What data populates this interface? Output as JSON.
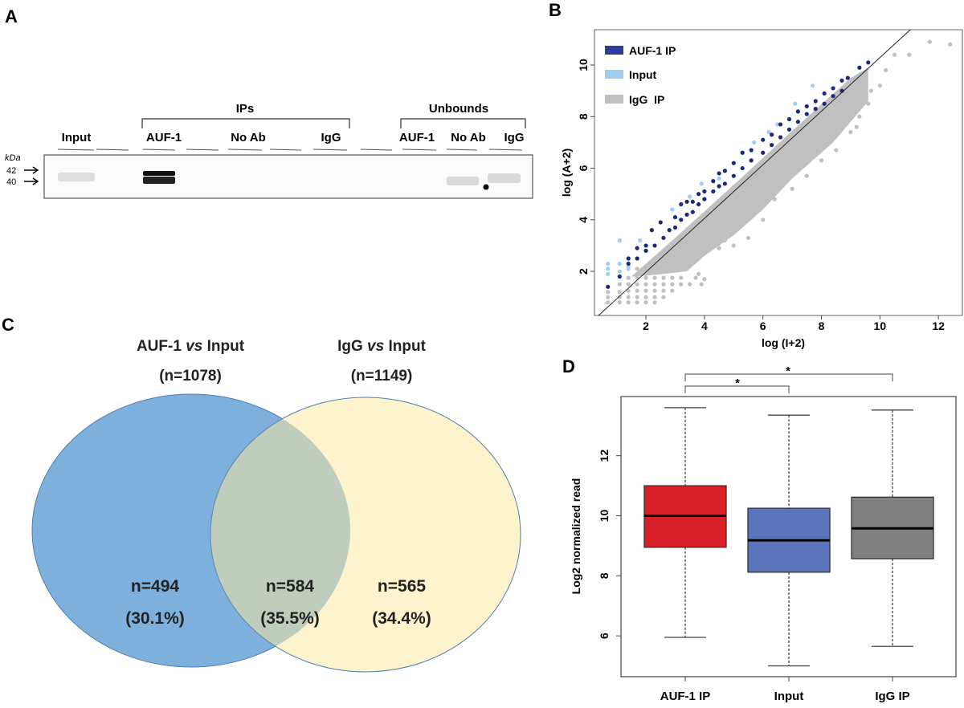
{
  "panel_labels": {
    "a": "A",
    "b": "B",
    "c": "C",
    "d": "D"
  },
  "panel_a": {
    "group_ips": "IPs",
    "group_unbounds": "Unbounds",
    "lanes": [
      "Input",
      "AUF-1",
      "No Ab",
      "IgG",
      "AUF-1",
      "No Ab",
      "IgG"
    ],
    "unit": "kDa",
    "markers": [
      "42",
      "40"
    ]
  },
  "chart_data": [
    {
      "type": "scatter",
      "xlabel": "log (I+2)",
      "ylabel": "log (A+2)",
      "xlim": [
        0.24,
        12.82
      ],
      "ylim": [
        0.29,
        11.37
      ],
      "xticks": [
        2,
        4,
        6,
        8,
        10,
        12
      ],
      "yticks": [
        2,
        4,
        6,
        8,
        10
      ],
      "grid": false,
      "legend_position": "top-left",
      "reference_line": {
        "x": [
          0.38,
          11.04
        ],
        "y": [
          0.29,
          11.37
        ]
      },
      "series": [
        {
          "name": "IgG  IP",
          "color": "#c0c0c0",
          "points": [
            [
              0.7,
              0.8
            ],
            [
              0.7,
              1.0
            ],
            [
              0.7,
              1.2
            ],
            [
              1.1,
              0.8
            ],
            [
              1.1,
              1.0
            ],
            [
              1.1,
              1.2
            ],
            [
              1.1,
              1.5
            ],
            [
              1.4,
              0.8
            ],
            [
              1.4,
              1.0
            ],
            [
              1.4,
              1.25
            ],
            [
              1.4,
              1.5
            ],
            [
              1.4,
              1.75
            ],
            [
              1.7,
              0.8
            ],
            [
              1.7,
              1.0
            ],
            [
              1.7,
              1.25
            ],
            [
              1.7,
              1.5
            ],
            [
              1.7,
              1.75
            ],
            [
              2.0,
              0.8
            ],
            [
              2.0,
              1.0
            ],
            [
              2.0,
              1.25
            ],
            [
              2.0,
              1.5
            ],
            [
              2.0,
              1.75
            ],
            [
              2.3,
              0.8
            ],
            [
              2.3,
              1.0
            ],
            [
              2.3,
              1.25
            ],
            [
              2.3,
              1.5
            ],
            [
              2.3,
              1.75
            ],
            [
              2.6,
              1.0
            ],
            [
              2.6,
              1.25
            ],
            [
              2.6,
              1.5
            ],
            [
              2.6,
              1.75
            ],
            [
              2.9,
              1.25
            ],
            [
              2.9,
              1.5
            ],
            [
              2.9,
              1.75
            ],
            [
              3.2,
              1.5
            ],
            [
              3.2,
              1.75
            ],
            [
              3.5,
              1.5
            ],
            [
              3.7,
              1.75
            ],
            [
              3.9,
              1.5
            ],
            [
              4.0,
              1.7
            ],
            [
              3.8,
              1.9
            ],
            [
              4.5,
              2.9
            ],
            [
              5.0,
              3.0
            ],
            [
              5.5,
              3.3
            ],
            [
              6.0,
              4.0
            ],
            [
              6.4,
              4.8
            ],
            [
              7.0,
              5.2
            ],
            [
              7.5,
              5.7
            ],
            [
              8.0,
              6.3
            ],
            [
              8.5,
              6.7
            ],
            [
              9.0,
              7.4
            ],
            [
              9.3,
              8.0
            ],
            [
              9.6,
              8.5
            ],
            [
              9.7,
              9.0
            ],
            [
              10.0,
              9.2
            ],
            [
              10.2,
              9.8
            ],
            [
              10.5,
              10.4
            ],
            [
              11.0,
              10.4
            ],
            [
              11.7,
              10.9
            ],
            [
              12.4,
              10.8
            ],
            [
              9.2,
              7.6
            ],
            [
              8.9,
              8.1
            ],
            [
              7.3,
              6.2
            ],
            [
              6.6,
              5.4
            ],
            [
              3.0,
              2.2
            ],
            [
              3.3,
              2.3
            ],
            [
              4.7,
              3.2
            ],
            [
              4.8,
              3.5
            ],
            [
              5.3,
              3.9
            ],
            [
              2.3,
              2.0
            ],
            [
              2.6,
              2.2
            ],
            [
              1.7,
              2.1
            ],
            [
              1.4,
              2.2
            ]
          ]
        },
        {
          "name": "Input",
          "color": "#9ecfee",
          "points": [
            [
              0.7,
              1.9
            ],
            [
              0.7,
              2.1
            ],
            [
              0.7,
              2.3
            ],
            [
              1.1,
              2.0
            ],
            [
              1.1,
              2.3
            ],
            [
              1.1,
              3.2
            ],
            [
              1.4,
              2.1
            ],
            [
              1.8,
              3.2
            ],
            [
              2.9,
              4.4
            ],
            [
              3.5,
              4.9
            ],
            [
              3.9,
              5.4
            ],
            [
              4.5,
              5.6
            ],
            [
              5.7,
              7.0
            ],
            [
              6.2,
              7.4
            ],
            [
              6.5,
              7.7
            ],
            [
              7.1,
              8.5
            ],
            [
              7.7,
              9.2
            ]
          ]
        },
        {
          "name": "AUF-1 IP",
          "color": "#1c2a7a",
          "points": [
            [
              0.7,
              1.4
            ],
            [
              1.1,
              1.8
            ],
            [
              1.4,
              2.3
            ],
            [
              1.4,
              2.5
            ],
            [
              1.7,
              2.5
            ],
            [
              1.7,
              2.9
            ],
            [
              2.0,
              2.8
            ],
            [
              2.0,
              3.0
            ],
            [
              2.2,
              3.6
            ],
            [
              2.3,
              3.0
            ],
            [
              2.5,
              3.9
            ],
            [
              2.6,
              3.3
            ],
            [
              2.8,
              3.6
            ],
            [
              3.0,
              3.7
            ],
            [
              3.0,
              4.1
            ],
            [
              3.2,
              4.0
            ],
            [
              3.2,
              4.6
            ],
            [
              3.4,
              4.2
            ],
            [
              3.4,
              4.7
            ],
            [
              3.6,
              4.3
            ],
            [
              3.6,
              4.7
            ],
            [
              3.8,
              4.6
            ],
            [
              3.8,
              5.0
            ],
            [
              4.0,
              4.8
            ],
            [
              4.0,
              5.1
            ],
            [
              4.3,
              5.1
            ],
            [
              4.3,
              5.5
            ],
            [
              4.5,
              5.3
            ],
            [
              4.5,
              5.8
            ],
            [
              4.7,
              5.4
            ],
            [
              4.7,
              5.9
            ],
            [
              5.0,
              5.7
            ],
            [
              5.0,
              6.2
            ],
            [
              5.3,
              6.0
            ],
            [
              5.3,
              6.6
            ],
            [
              5.6,
              6.3
            ],
            [
              5.6,
              6.7
            ],
            [
              6.0,
              6.6
            ],
            [
              6.0,
              7.1
            ],
            [
              6.3,
              6.9
            ],
            [
              6.3,
              7.3
            ],
            [
              6.6,
              7.2
            ],
            [
              6.6,
              7.7
            ],
            [
              6.9,
              7.5
            ],
            [
              6.9,
              7.9
            ],
            [
              7.2,
              7.8
            ],
            [
              7.2,
              8.2
            ],
            [
              7.5,
              8.1
            ],
            [
              7.5,
              8.4
            ],
            [
              7.8,
              8.3
            ],
            [
              7.8,
              8.6
            ],
            [
              8.1,
              8.5
            ],
            [
              8.1,
              8.9
            ],
            [
              8.4,
              8.8
            ],
            [
              8.4,
              9.1
            ],
            [
              8.7,
              9.0
            ],
            [
              8.7,
              9.4
            ],
            [
              8.9,
              9.5
            ],
            [
              9.3,
              9.9
            ],
            [
              9.6,
              10.1
            ]
          ]
        }
      ],
      "dense_region_igg": [
        [
          1.5,
          1.8
        ],
        [
          3,
          3.3
        ],
        [
          5,
          5.35
        ],
        [
          7,
          7.45
        ],
        [
          9,
          9.5
        ],
        [
          9.6,
          9.9
        ],
        [
          9.6,
          8.6
        ],
        [
          8.4,
          7.0
        ],
        [
          7,
          5.6
        ],
        [
          6,
          4.4
        ],
        [
          5,
          3.4
        ],
        [
          4,
          2.6
        ],
        [
          3.4,
          2.0
        ],
        [
          2.6,
          1.9
        ],
        [
          1.7,
          1.8
        ]
      ]
    },
    {
      "type": "venn",
      "sets": [
        {
          "title": "AUF-1 vs Input",
          "title_parts": [
            "AUF-1 ",
            "vs",
            " Input"
          ],
          "total": "(n=1078)",
          "color": "#7eb0de"
        },
        {
          "title": "IgG vs Input",
          "title_parts": [
            "IgG ",
            "vs",
            " Input"
          ],
          "total": "(n=1149)",
          "color": "#fdf3cc"
        }
      ],
      "regions": [
        {
          "label": "n=494",
          "pct": "(30.1%)",
          "count": 494,
          "percent": 30.1
        },
        {
          "label": "n=584",
          "pct": "(35.5%)",
          "count": 584,
          "percent": 35.5,
          "color": "#c1cdbc"
        },
        {
          "label": "n=565",
          "pct": "(34.4%)",
          "count": 565,
          "percent": 34.4
        }
      ]
    },
    {
      "type": "box",
      "ylabel": "Log2 normalized read",
      "ylim": [
        4.64,
        13.97
      ],
      "yticks": [
        6,
        8,
        10,
        12
      ],
      "categories": [
        "AUF-1 IP",
        "Input",
        "IgG  IP"
      ],
      "boxes": [
        {
          "name": "AUF-1 IP",
          "color": "#d81e27",
          "min": 5.95,
          "q1": 8.95,
          "median": 10.0,
          "q3": 11.0,
          "max": 13.6
        },
        {
          "name": "Input",
          "color": "#5b74bb",
          "min": 5.0,
          "q1": 8.12,
          "median": 9.18,
          "q3": 10.25,
          "max": 13.35
        },
        {
          "name": "IgG  IP",
          "color": "#808080",
          "min": 5.65,
          "q1": 8.57,
          "median": 9.58,
          "q3": 10.62,
          "max": 13.52
        }
      ],
      "significance": [
        {
          "pair": [
            "AUF-1 IP",
            "Input"
          ],
          "label": "*"
        },
        {
          "pair": [
            "AUF-1 IP",
            "IgG  IP"
          ],
          "label": "*"
        }
      ]
    }
  ]
}
